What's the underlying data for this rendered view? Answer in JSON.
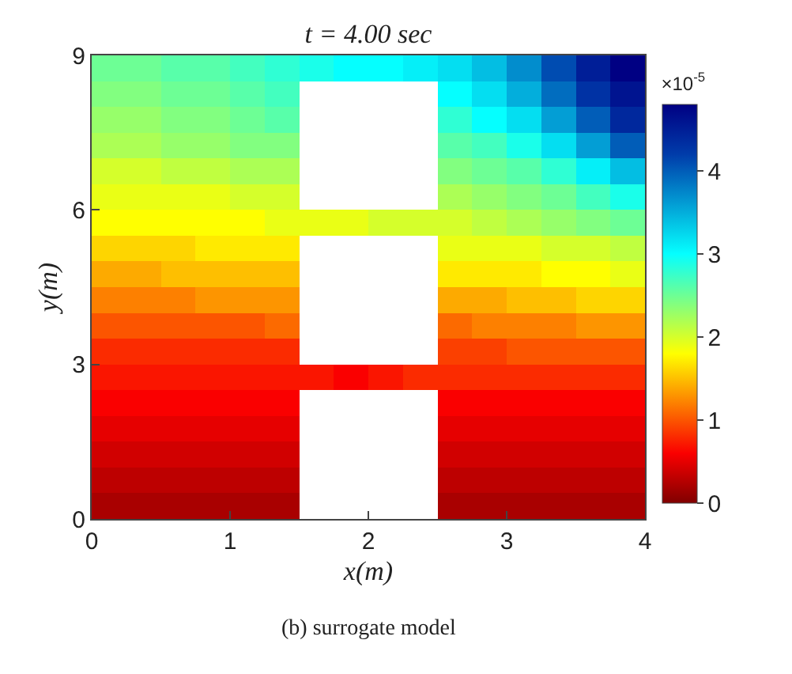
{
  "chart_data": {
    "type": "heatmap",
    "title": "t = 4.00 sec",
    "xlabel": "x(m)",
    "ylabel": "y(m)",
    "clabel": "×10$^{-5}$",
    "annotations": [
      "(b) surrogate model"
    ],
    "x": [
      0.125,
      0.375,
      0.625,
      0.875,
      1.125,
      1.375,
      1.625,
      1.875,
      2.125,
      2.375,
      2.625,
      2.875,
      3.125,
      3.375,
      3.625,
      3.875
    ],
    "y": [
      8.75,
      8.25,
      7.75,
      7.25,
      6.75,
      6.25,
      5.75,
      5.25,
      4.75,
      4.25,
      3.75,
      3.25,
      2.75,
      2.25,
      1.75,
      1.25,
      0.75,
      0.25
    ],
    "cells": [
      [
        2.5,
        2.5,
        2.6,
        2.6,
        2.7,
        2.8,
        2.9,
        3.0,
        3.0,
        3.1,
        3.2,
        3.4,
        3.7,
        4.1,
        4.5,
        4.8
      ],
      [
        2.4,
        2.4,
        2.5,
        2.5,
        2.6,
        2.7,
        null,
        null,
        null,
        null,
        3.0,
        3.2,
        3.5,
        3.9,
        4.3,
        4.6
      ],
      [
        2.3,
        2.3,
        2.4,
        2.4,
        2.5,
        2.6,
        null,
        null,
        null,
        null,
        2.8,
        3.0,
        3.2,
        3.6,
        4.0,
        4.4
      ],
      [
        2.2,
        2.2,
        2.3,
        2.3,
        2.4,
        2.4,
        null,
        null,
        null,
        null,
        2.6,
        2.7,
        2.9,
        3.2,
        3.6,
        4.0
      ],
      [
        2.0,
        2.0,
        2.1,
        2.1,
        2.2,
        2.2,
        null,
        null,
        null,
        null,
        2.4,
        2.5,
        2.6,
        2.8,
        3.1,
        3.4
      ],
      [
        1.9,
        1.9,
        1.9,
        1.9,
        2.0,
        2.0,
        null,
        null,
        null,
        null,
        2.2,
        2.3,
        2.4,
        2.5,
        2.7,
        2.9
      ],
      [
        1.8,
        1.8,
        1.8,
        1.8,
        1.8,
        1.9,
        1.9,
        1.9,
        2.0,
        2.0,
        2.0,
        2.1,
        2.2,
        2.3,
        2.4,
        2.5
      ],
      [
        1.6,
        1.6,
        1.6,
        1.7,
        1.7,
        1.7,
        null,
        null,
        null,
        null,
        1.9,
        1.9,
        1.9,
        2.0,
        2.0,
        2.1
      ],
      [
        1.4,
        1.4,
        1.5,
        1.5,
        1.5,
        1.5,
        null,
        null,
        null,
        null,
        1.7,
        1.7,
        1.7,
        1.8,
        1.8,
        1.9
      ],
      [
        1.2,
        1.2,
        1.2,
        1.3,
        1.3,
        1.3,
        null,
        null,
        null,
        null,
        1.4,
        1.4,
        1.5,
        1.5,
        1.6,
        1.6
      ],
      [
        1.0,
        1.0,
        1.0,
        1.0,
        1.0,
        1.1,
        null,
        null,
        null,
        null,
        1.1,
        1.2,
        1.2,
        1.2,
        1.3,
        1.3
      ],
      [
        0.8,
        0.8,
        0.8,
        0.8,
        0.8,
        0.8,
        null,
        null,
        null,
        null,
        0.9,
        0.9,
        1.0,
        1.0,
        1.0,
        1.0
      ],
      [
        0.7,
        0.7,
        0.7,
        0.7,
        0.7,
        0.7,
        0.7,
        0.6,
        0.7,
        0.8,
        0.8,
        0.8,
        0.8,
        0.8,
        0.8,
        0.8
      ],
      [
        0.6,
        0.6,
        0.6,
        0.6,
        0.6,
        0.6,
        null,
        null,
        null,
        null,
        0.6,
        0.6,
        0.6,
        0.6,
        0.6,
        0.6
      ],
      [
        0.5,
        0.5,
        0.5,
        0.5,
        0.5,
        0.5,
        null,
        null,
        null,
        null,
        0.5,
        0.5,
        0.5,
        0.5,
        0.5,
        0.5
      ],
      [
        0.4,
        0.4,
        0.4,
        0.4,
        0.4,
        0.4,
        null,
        null,
        null,
        null,
        0.4,
        0.4,
        0.4,
        0.4,
        0.4,
        0.4
      ],
      [
        0.3,
        0.3,
        0.3,
        0.3,
        0.3,
        0.3,
        null,
        null,
        null,
        null,
        0.3,
        0.3,
        0.3,
        0.3,
        0.3,
        0.3
      ],
      [
        0.2,
        0.2,
        0.2,
        0.2,
        0.2,
        0.2,
        null,
        null,
        null,
        null,
        0.2,
        0.2,
        0.2,
        0.2,
        0.2,
        0.2
      ]
    ],
    "clim": [
      0,
      4.8
    ],
    "cticks": [
      0,
      1,
      2,
      3,
      4
    ],
    "xlim": [
      0,
      4
    ],
    "xticks": [
      0,
      1,
      2,
      3,
      4
    ],
    "ylim": [
      0,
      9
    ],
    "yticks": [
      0,
      3,
      6,
      9
    ]
  }
}
